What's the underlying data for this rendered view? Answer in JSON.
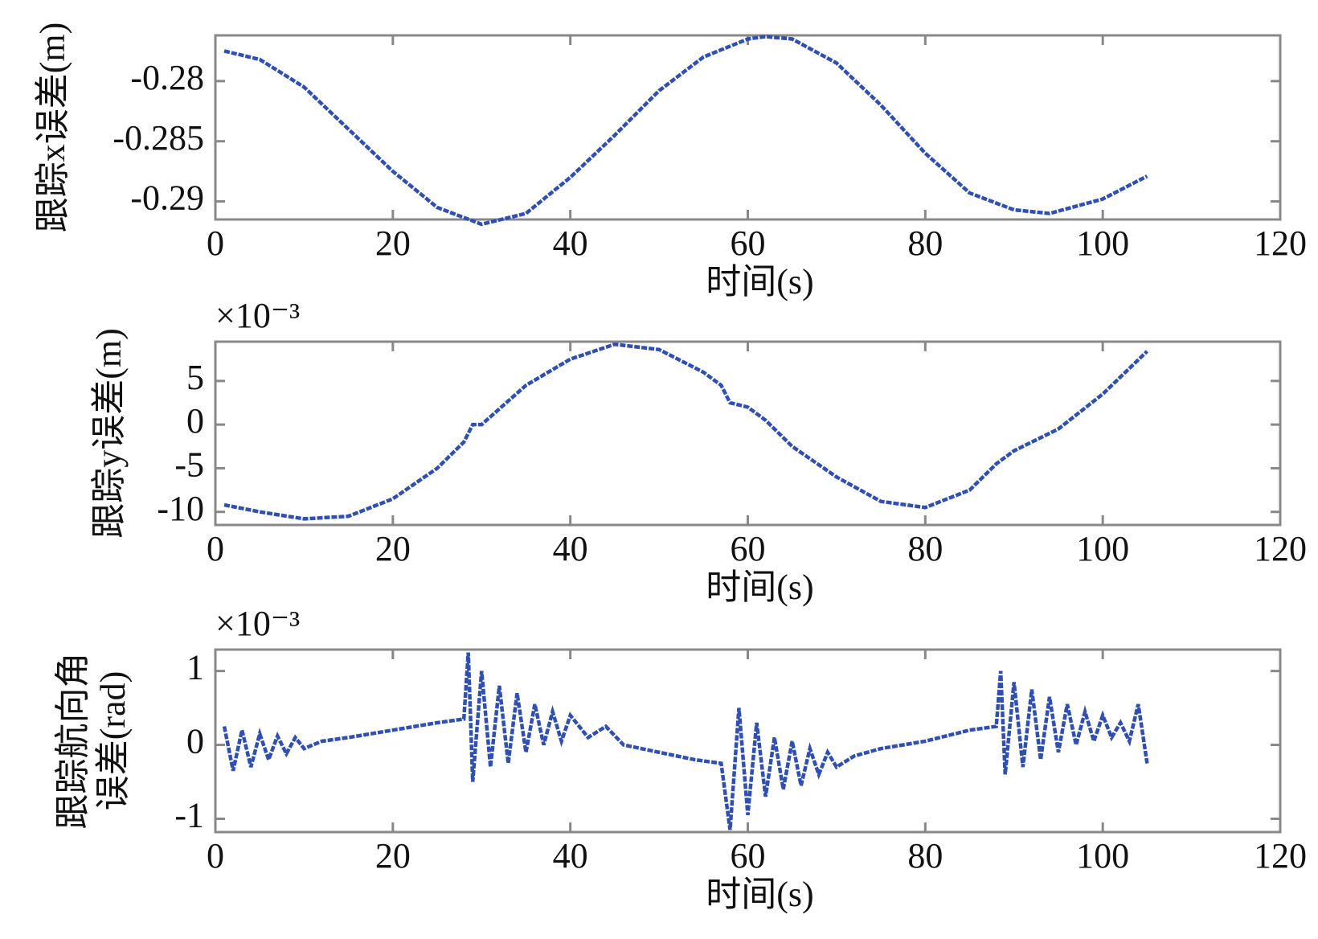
{
  "chart_data": [
    {
      "type": "line",
      "ylabel": [
        "跟踪x误差(m)"
      ],
      "xlabel": "时间(s)",
      "color": "#2f4fb3",
      "xlim": [
        0,
        120
      ],
      "xticks": [
        0,
        20,
        40,
        60,
        80,
        100,
        120
      ],
      "ylim": [
        -0.2915,
        -0.2762
      ],
      "yticks": [
        -0.29,
        -0.285,
        -0.28
      ],
      "x": [
        1,
        5,
        10,
        15,
        20,
        25,
        30,
        35,
        40,
        45,
        50,
        55,
        60,
        62,
        65,
        70,
        75,
        80,
        85,
        90,
        94,
        100,
        105
      ],
      "values": [
        -0.2775,
        -0.2782,
        -0.2805,
        -0.284,
        -0.2875,
        -0.2905,
        -0.2919,
        -0.291,
        -0.288,
        -0.2845,
        -0.2808,
        -0.278,
        -0.2765,
        -0.2763,
        -0.2765,
        -0.2785,
        -0.282,
        -0.286,
        -0.2893,
        -0.2907,
        -0.291,
        -0.2898,
        -0.2879
      ]
    },
    {
      "type": "line",
      "ylabel": [
        "跟踪y误差(m)"
      ],
      "xlabel": "时间(s)",
      "multiplier": "×10⁻³",
      "color": "#2f4fb3",
      "xlim": [
        0,
        120
      ],
      "xticks": [
        0,
        20,
        40,
        60,
        80,
        100,
        120
      ],
      "ylim": [
        -11.5,
        9.5
      ],
      "yticks": [
        -10,
        -5,
        0,
        5
      ],
      "x": [
        1,
        5,
        10,
        15,
        20,
        25,
        28,
        29,
        30,
        35,
        40,
        45,
        50,
        55,
        57,
        58,
        60,
        62,
        65,
        70,
        75,
        80,
        85,
        88,
        90,
        95,
        100,
        105
      ],
      "values": [
        -9.2,
        -10,
        -10.8,
        -10.5,
        -8.5,
        -5,
        -2,
        0,
        0,
        4.5,
        7.5,
        9.2,
        8.6,
        6,
        4.5,
        2.5,
        2,
        0.5,
        -2.5,
        -6,
        -8.8,
        -9.5,
        -7.5,
        -4.5,
        -3,
        -0.5,
        3.5,
        8.4
      ]
    },
    {
      "type": "line",
      "ylabel": [
        "跟踪航向角",
        "误差(rad)"
      ],
      "xlabel": "时间(s)",
      "multiplier": "×10⁻³",
      "color": "#2f4fb3",
      "xlim": [
        0,
        120
      ],
      "xticks": [
        0,
        20,
        40,
        60,
        80,
        100,
        120
      ],
      "ylim": [
        -1.18,
        1.29
      ],
      "yticks": [
        -1,
        0,
        1
      ],
      "x": [
        1,
        2,
        3,
        4,
        5,
        6,
        7,
        8,
        9,
        10,
        12,
        15,
        20,
        25,
        28,
        28.5,
        29,
        30,
        31,
        32,
        33,
        34,
        35,
        36,
        37,
        38,
        39,
        40,
        42,
        44,
        46,
        50,
        54,
        57,
        58,
        59,
        60,
        61,
        62,
        63,
        64,
        65,
        66,
        67,
        68,
        69,
        70,
        72,
        75,
        80,
        85,
        88,
        88.5,
        89,
        90,
        91,
        92,
        93,
        94,
        95,
        96,
        97,
        98,
        99,
        100,
        101,
        102,
        103,
        104,
        105
      ],
      "values": [
        0.25,
        -0.35,
        0.2,
        -0.3,
        0.15,
        -0.2,
        0.12,
        -0.12,
        0.1,
        -0.05,
        0.05,
        0.1,
        0.2,
        0.3,
        0.35,
        1.25,
        -0.5,
        1.0,
        -0.3,
        0.8,
        -0.25,
        0.7,
        -0.1,
        0.55,
        0,
        0.45,
        0.05,
        0.4,
        0.1,
        0.25,
        0,
        -0.1,
        -0.2,
        -0.25,
        -1.15,
        0.5,
        -0.95,
        0.3,
        -0.7,
        0.1,
        -0.6,
        0.05,
        -0.55,
        -0.05,
        -0.4,
        -0.1,
        -0.3,
        -0.15,
        -0.05,
        0.05,
        0.2,
        0.25,
        1.0,
        -0.4,
        0.85,
        -0.3,
        0.75,
        -0.2,
        0.65,
        -0.1,
        0.55,
        0,
        0.45,
        0.05,
        0.4,
        0.1,
        0.3,
        0.05,
        0.55,
        -0.25
      ]
    }
  ]
}
